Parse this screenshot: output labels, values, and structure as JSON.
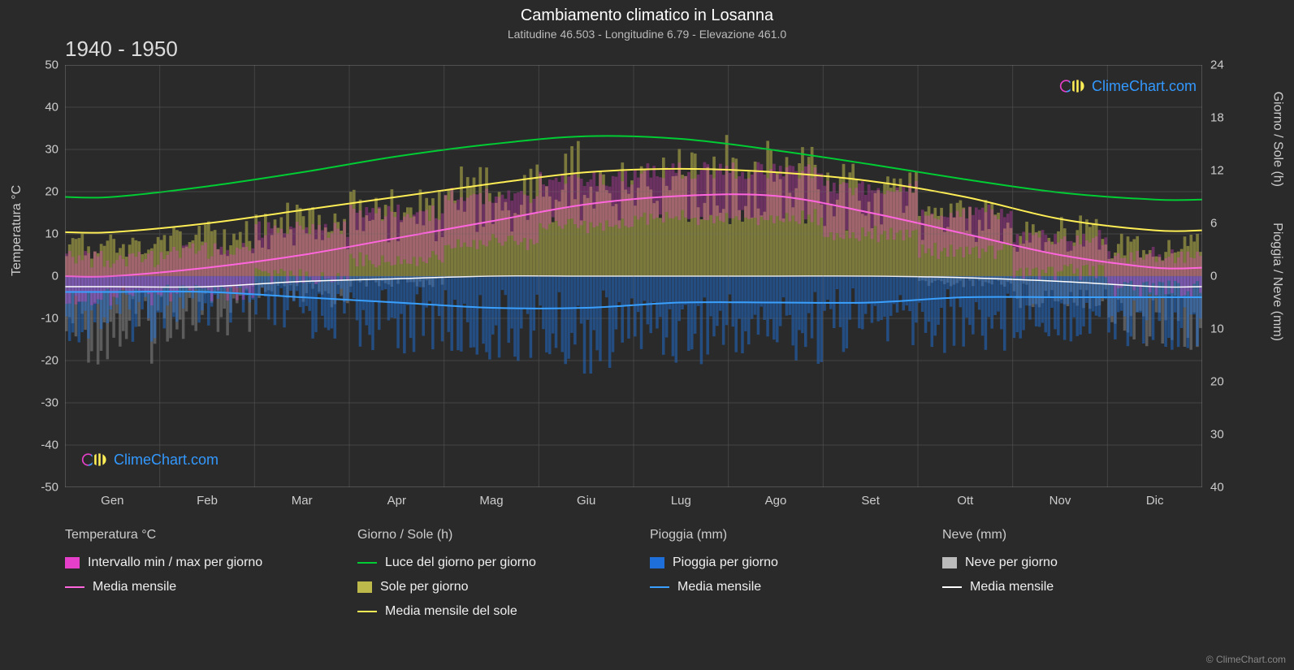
{
  "title": "Cambiamento climatico in Losanna",
  "subtitle": "Latitudine 46.503 - Longitudine 6.79 - Elevazione 461.0",
  "year_range": "1940 - 1950",
  "brand": "ClimeChart.com",
  "copyright": "© ClimeChart.com",
  "chart": {
    "background_color": "#2a2a2a",
    "plot_background": "#2a2a2a",
    "grid_color": "#555555",
    "grid_minor_color": "#3a3a3a",
    "months": [
      "Gen",
      "Feb",
      "Mar",
      "Apr",
      "Mag",
      "Giu",
      "Lug",
      "Ago",
      "Set",
      "Ott",
      "Nov",
      "Dic"
    ],
    "left_axis": {
      "label": "Temperatura °C",
      "min": -50,
      "max": 50,
      "step": 10,
      "tick_color": "#cccccc",
      "label_fontsize": 16
    },
    "right_axis_top": {
      "label": "Giorno / Sole (h)",
      "min": 0,
      "max": 24,
      "step": 6,
      "tick_color": "#cccccc"
    },
    "right_axis_bottom": {
      "label": "Pioggia / Neve (mm)",
      "min": 0,
      "max": 40,
      "step": 10,
      "tick_color": "#cccccc"
    },
    "series": {
      "daylight": {
        "label": "Luce del giorno per giorno",
        "color": "#00cc33",
        "type": "line",
        "values_hours": [
          9.0,
          10.2,
          11.8,
          13.6,
          15.0,
          15.9,
          15.6,
          14.3,
          12.7,
          11.0,
          9.5,
          8.7
        ]
      },
      "sun_daily": {
        "label": "Sole per giorno",
        "color": "#bdb94a",
        "fill_opacity": 0.55,
        "type": "area",
        "values_hours": [
          3.5,
          4.5,
          6.0,
          7.5,
          9.5,
          11.5,
          12.0,
          11.5,
          10.0,
          7.0,
          5.0,
          3.5
        ]
      },
      "sun_mean": {
        "label": "Media mensile del sole",
        "color": "#ffee55",
        "type": "line",
        "values_hours": [
          5.0,
          6.0,
          7.5,
          9.0,
          10.5,
          11.8,
          12.2,
          11.8,
          10.8,
          9.0,
          6.5,
          5.2
        ]
      },
      "temp_range": {
        "label": "Intervallo min / max per giorno",
        "color": "#e63fc9",
        "fill_opacity": 0.35,
        "type": "band",
        "min_c": [
          -5,
          -4,
          0,
          4,
          8,
          12,
          14,
          14,
          10,
          6,
          1,
          -3
        ],
        "max_c": [
          4,
          6,
          11,
          15,
          19,
          23,
          25,
          25,
          21,
          15,
          9,
          5
        ]
      },
      "temp_mean": {
        "label": "Media mensile",
        "color": "#ff66dd",
        "type": "line",
        "values_c": [
          0,
          2,
          5,
          9,
          13,
          17,
          19,
          19,
          15,
          10,
          5,
          2
        ]
      },
      "rain_daily": {
        "label": "Pioggia per giorno",
        "color": "#1e6fd9",
        "fill_opacity": 0.5,
        "type": "bars_down",
        "values_mm": [
          6,
          5,
          6,
          7,
          8,
          9,
          8,
          8,
          7,
          7,
          6,
          7
        ]
      },
      "rain_mean": {
        "label": "Media mensile",
        "color": "#3aa0ff",
        "type": "line",
        "values_mm": [
          3,
          3,
          4,
          5,
          6,
          6,
          5,
          5,
          5,
          4,
          4,
          4
        ]
      },
      "snow_daily": {
        "label": "Neve per giorno",
        "color": "#bbbbbb",
        "fill_opacity": 0.35,
        "type": "bars_down",
        "values_mm": [
          8,
          6,
          3,
          1,
          0,
          0,
          0,
          0,
          0,
          1,
          3,
          7
        ]
      },
      "snow_mean": {
        "label": "Media mensile",
        "color": "#ffffff",
        "type": "line",
        "values_mm": [
          2,
          2,
          1,
          0.5,
          0,
          0,
          0,
          0,
          0,
          0.3,
          1,
          2
        ]
      }
    }
  },
  "legend": {
    "columns": [
      {
        "title": "Temperatura °C",
        "items": [
          {
            "kind": "swatch",
            "color": "#e63fc9",
            "label": "Intervallo min / max per giorno"
          },
          {
            "kind": "line",
            "color": "#ff66dd",
            "label": "Media mensile"
          }
        ]
      },
      {
        "title": "Giorno / Sole (h)",
        "items": [
          {
            "kind": "line",
            "color": "#00cc33",
            "label": "Luce del giorno per giorno"
          },
          {
            "kind": "swatch",
            "color": "#bdb94a",
            "label": "Sole per giorno"
          },
          {
            "kind": "line",
            "color": "#ffee55",
            "label": "Media mensile del sole"
          }
        ]
      },
      {
        "title": "Pioggia (mm)",
        "items": [
          {
            "kind": "swatch",
            "color": "#1e6fd9",
            "label": "Pioggia per giorno"
          },
          {
            "kind": "line",
            "color": "#3aa0ff",
            "label": "Media mensile"
          }
        ]
      },
      {
        "title": "Neve (mm)",
        "items": [
          {
            "kind": "swatch",
            "color": "#bbbbbb",
            "label": "Neve per giorno"
          },
          {
            "kind": "line",
            "color": "#ffffff",
            "label": "Media mensile"
          }
        ]
      }
    ]
  }
}
